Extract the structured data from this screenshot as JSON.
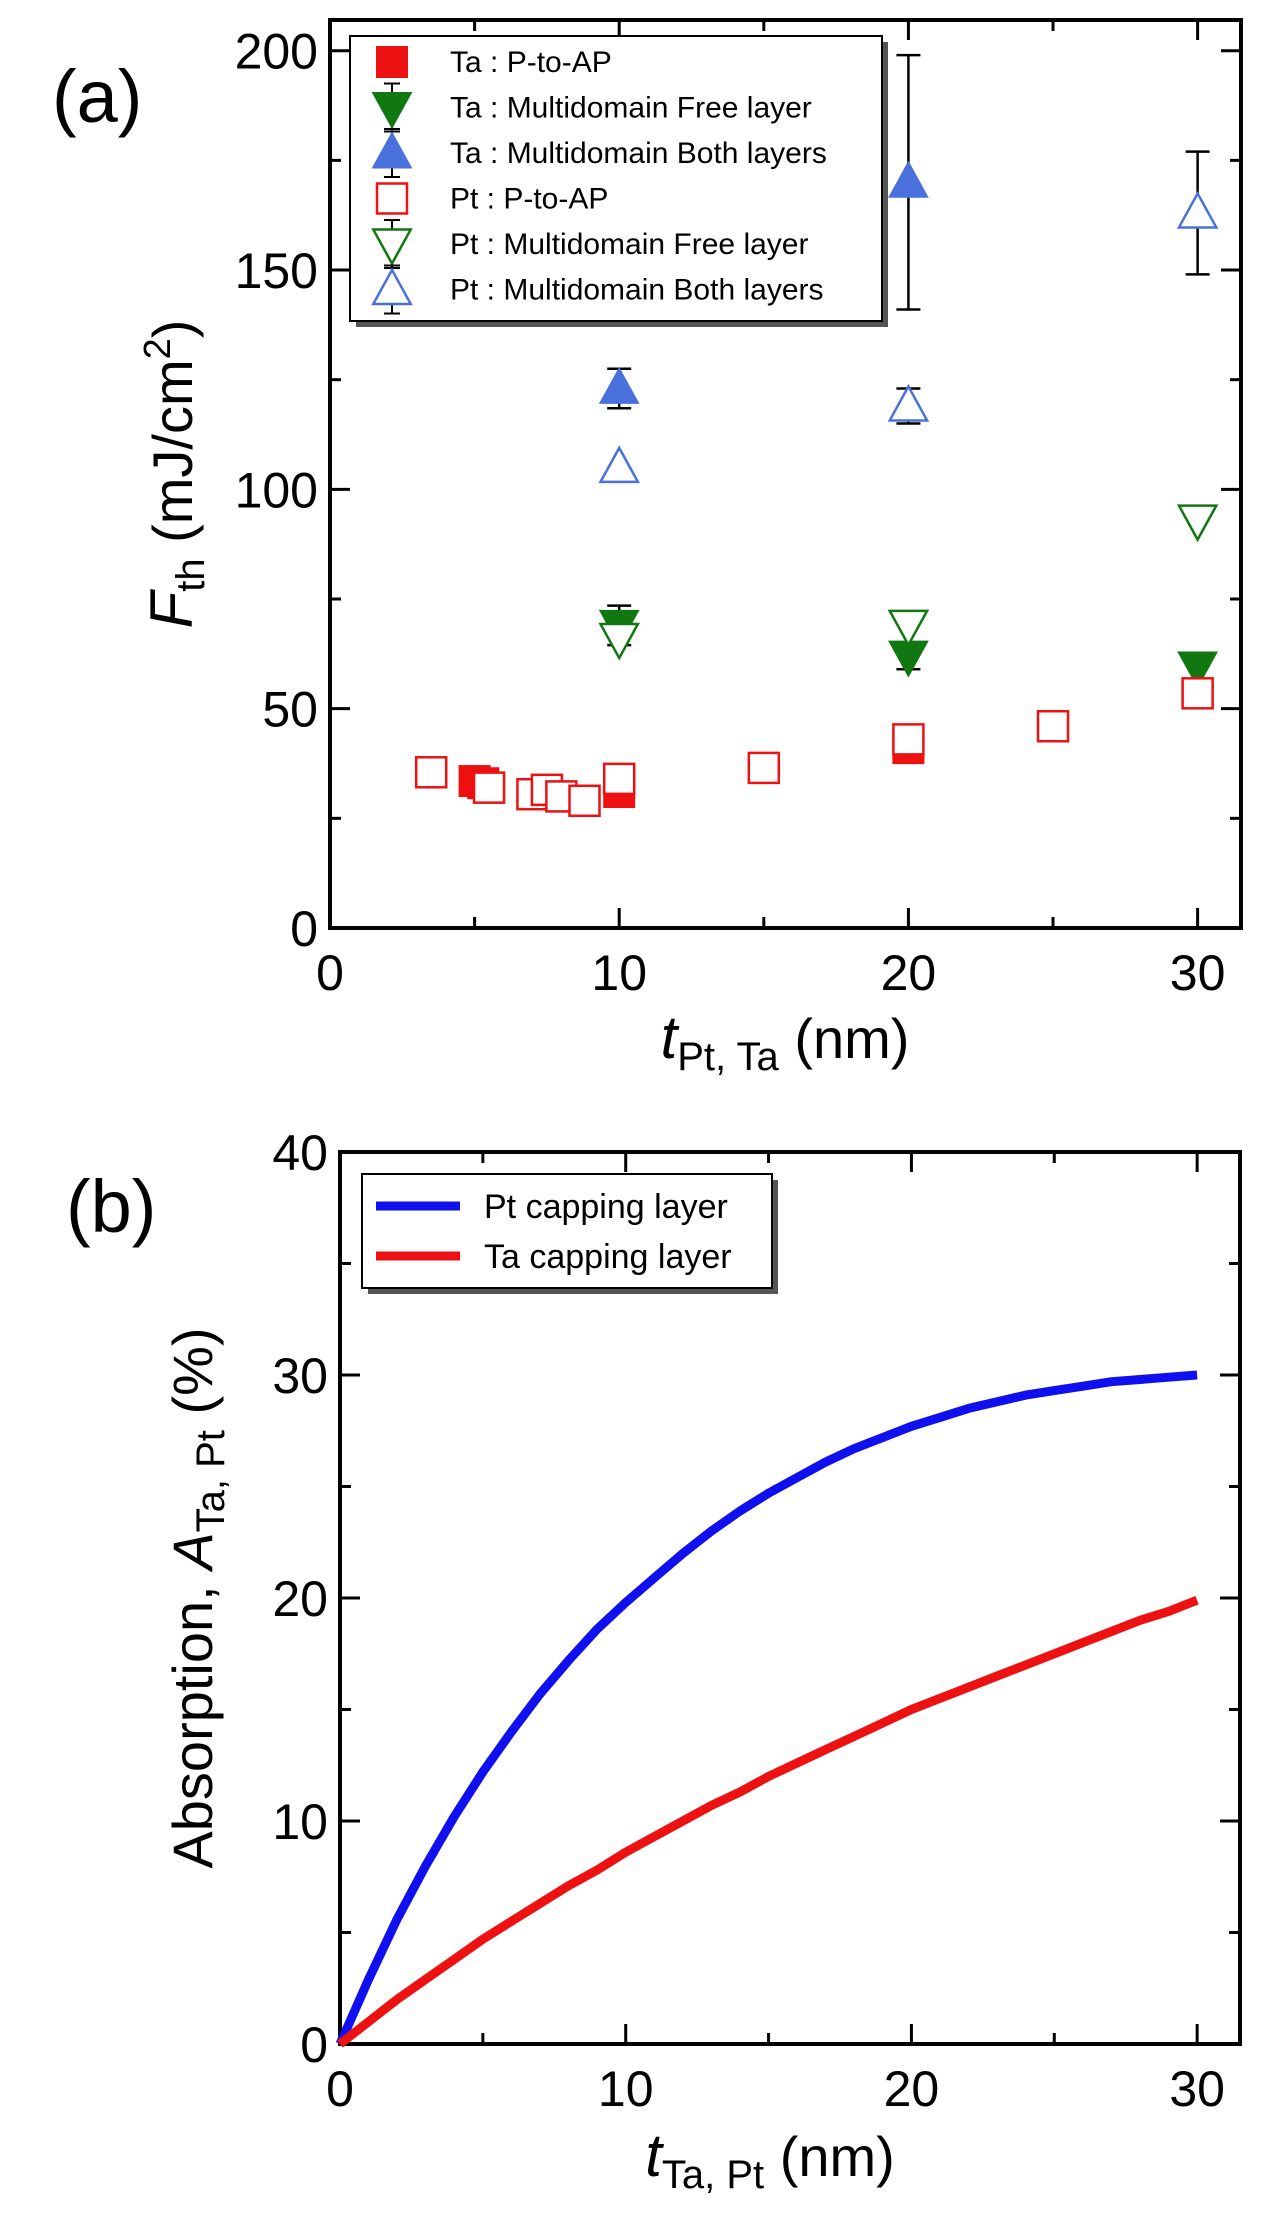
{
  "chart_data": [
    {
      "panel_label": "(a)",
      "type": "scatter",
      "xlabel": {
        "italic": "t",
        "sub": "Pt, Ta",
        "unit": " (nm)"
      },
      "ylabel": {
        "italic": "F",
        "sub": "th",
        "unit_pre": " (mJ/cm",
        "sup": "2",
        "unit_post": ")"
      },
      "xlim": [
        0,
        31.5
      ],
      "ylim": [
        0,
        207
      ],
      "xticks": [
        0,
        10,
        20,
        30
      ],
      "yticks": [
        0,
        50,
        100,
        150,
        200
      ],
      "legend_position": "top-left",
      "series": [
        {
          "name": "Ta : P-to-AP",
          "marker": "square",
          "filled": true,
          "color": "#ee1111",
          "points": [
            {
              "x": 5.0,
              "y": 33.5
            },
            {
              "x": 5.3,
              "y": 33.0
            },
            {
              "x": 10.0,
              "y": 31.0
            },
            {
              "x": 20.0,
              "y": 42.0
            },
            {
              "x": 20.0,
              "y": 41.0
            }
          ]
        },
        {
          "name": "Ta : Multidomain Free layer",
          "marker": "triangle-down",
          "filled": true,
          "color": "#117711",
          "points": [
            {
              "x": 10.0,
              "y": 69.0,
              "err": 4.5
            },
            {
              "x": 20.0,
              "y": 62.0,
              "err": 3.0
            },
            {
              "x": 30.0,
              "y": 59.5
            }
          ]
        },
        {
          "name": "Ta : Multidomain Both layers",
          "marker": "triangle-up",
          "filled": true,
          "color": "#4a70dd",
          "points": [
            {
              "x": 10.0,
              "y": 123.0,
              "err": 4.5
            },
            {
              "x": 20.0,
              "y": 170.0,
              "err": 29.0
            }
          ]
        },
        {
          "name": "Pt : P-to-AP",
          "marker": "square",
          "filled": false,
          "color": "#ee1111",
          "points": [
            {
              "x": 3.5,
              "y": 35.5
            },
            {
              "x": 5.5,
              "y": 32.0
            },
            {
              "x": 7.0,
              "y": 30.5
            },
            {
              "x": 7.5,
              "y": 31.5
            },
            {
              "x": 8.0,
              "y": 30.0
            },
            {
              "x": 8.8,
              "y": 29.0
            },
            {
              "x": 10.0,
              "y": 34.0
            },
            {
              "x": 15.0,
              "y": 36.5
            },
            {
              "x": 20.0,
              "y": 43.0
            },
            {
              "x": 25.0,
              "y": 46.0
            },
            {
              "x": 30.0,
              "y": 53.5
            }
          ]
        },
        {
          "name": "Pt : Multidomain Free layer",
          "marker": "triangle-down",
          "filled": false,
          "color": "#117711",
          "points": [
            {
              "x": 10.0,
              "y": 66.0
            },
            {
              "x": 20.0,
              "y": 69.0
            },
            {
              "x": 30.0,
              "y": 93.0
            }
          ]
        },
        {
          "name": "Pt : Multidomain Both layers",
          "marker": "triangle-up",
          "filled": false,
          "color": "#4a70dd",
          "points": [
            {
              "x": 10.0,
              "y": 105.0
            },
            {
              "x": 20.0,
              "y": 119.0,
              "err": 4.0
            },
            {
              "x": 30.0,
              "y": 163.0,
              "err": 14.0
            }
          ]
        }
      ]
    },
    {
      "panel_label": "(b)",
      "type": "line",
      "xlabel": {
        "italic": "t",
        "sub": "Ta, Pt",
        "unit": " (nm)"
      },
      "ylabel": {
        "plain": "Absorption, ",
        "italic": "A",
        "sub": "Ta, Pt",
        "unit": " (%)"
      },
      "xlim": [
        0,
        31.5
      ],
      "ylim": [
        0,
        40
      ],
      "xticks": [
        0,
        10,
        20,
        30
      ],
      "yticks": [
        0,
        10,
        20,
        30,
        40
      ],
      "legend_position": "top-left",
      "series": [
        {
          "name": "Pt capping layer",
          "color": "#1010ee",
          "x": [
            0,
            1,
            2,
            3,
            4,
            5,
            6,
            7,
            8,
            9,
            10,
            11,
            12,
            13,
            14,
            15,
            16,
            17,
            18,
            19,
            20,
            21,
            22,
            23,
            24,
            25,
            26,
            27,
            28,
            29,
            30
          ],
          "y": [
            0,
            2.9,
            5.6,
            8.0,
            10.2,
            12.2,
            14.0,
            15.7,
            17.2,
            18.6,
            19.8,
            20.9,
            22.0,
            23.0,
            23.9,
            24.7,
            25.4,
            26.1,
            26.7,
            27.2,
            27.7,
            28.1,
            28.5,
            28.8,
            29.1,
            29.3,
            29.5,
            29.7,
            29.8,
            29.9,
            30.0
          ]
        },
        {
          "name": "Ta capping layer",
          "color": "#ee1111",
          "x": [
            0,
            1,
            2,
            3,
            4,
            5,
            6,
            7,
            8,
            9,
            10,
            11,
            12,
            13,
            14,
            15,
            16,
            17,
            18,
            19,
            20,
            21,
            22,
            23,
            24,
            25,
            26,
            27,
            28,
            29,
            30
          ],
          "y": [
            0,
            1.0,
            2.0,
            2.9,
            3.8,
            4.7,
            5.5,
            6.3,
            7.1,
            7.8,
            8.6,
            9.3,
            10.0,
            10.7,
            11.3,
            12.0,
            12.6,
            13.2,
            13.8,
            14.4,
            15.0,
            15.5,
            16.0,
            16.5,
            17.0,
            17.5,
            18.0,
            18.5,
            19.0,
            19.4,
            19.9
          ]
        }
      ]
    }
  ]
}
